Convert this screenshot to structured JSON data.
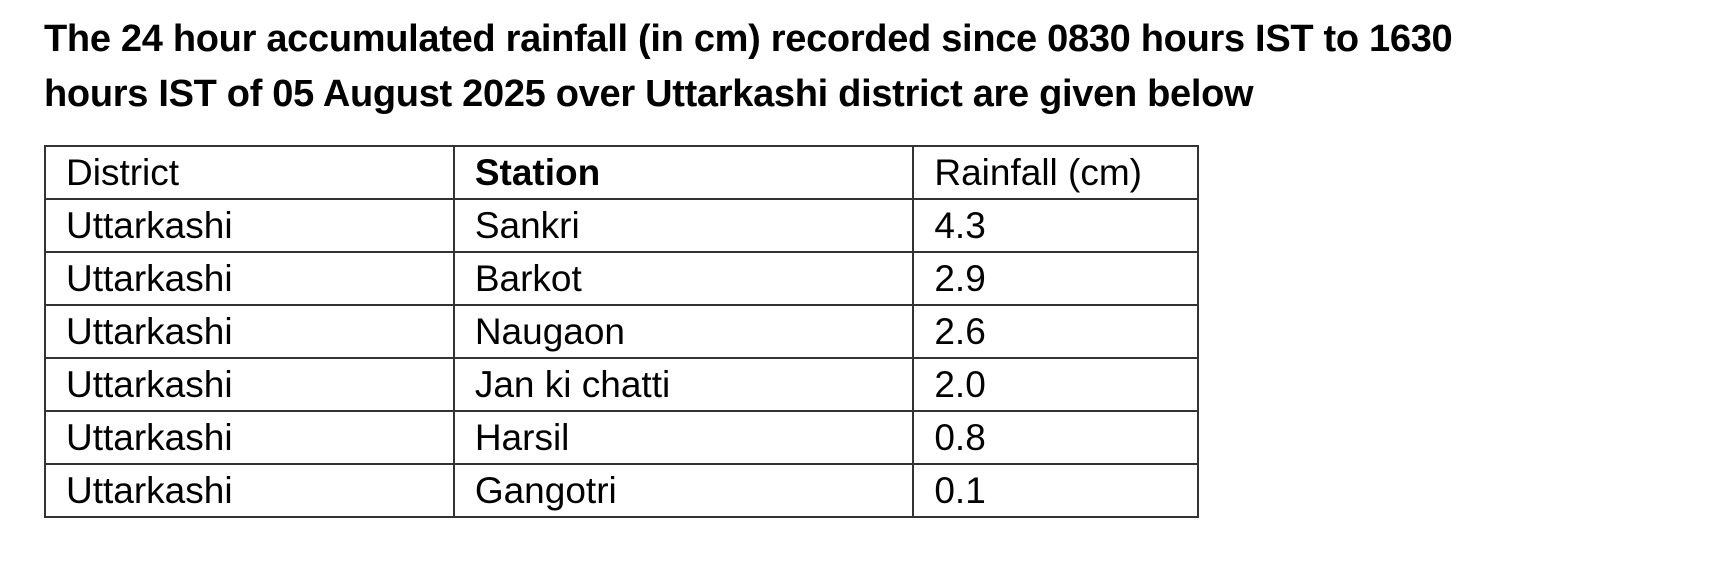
{
  "heading": {
    "line1": "The 24 hour accumulated rainfall (in cm) recorded since 0830 hours IST to 1630",
    "line2": "hours IST of 05 August 2025 over Uttarkashi district are given below"
  },
  "table": {
    "headers": {
      "district": "District",
      "station": "Station",
      "rainfall": "Rainfall (cm)"
    },
    "rows": [
      {
        "district": "Uttarkashi",
        "station": "Sankri",
        "rainfall": "4.3"
      },
      {
        "district": "Uttarkashi",
        "station": "Barkot",
        "rainfall": "2.9"
      },
      {
        "district": "Uttarkashi",
        "station": "Naugaon",
        "rainfall": "2.6"
      },
      {
        "district": "Uttarkashi",
        "station": "Jan ki chatti",
        "rainfall": "2.0"
      },
      {
        "district": "Uttarkashi",
        "station": "Harsil",
        "rainfall": "0.8"
      },
      {
        "district": "Uttarkashi",
        "station": "Gangotri",
        "rainfall": "0.1"
      }
    ]
  },
  "colors": {
    "text": "#000000",
    "border": "#333333",
    "background": "#ffffff"
  }
}
